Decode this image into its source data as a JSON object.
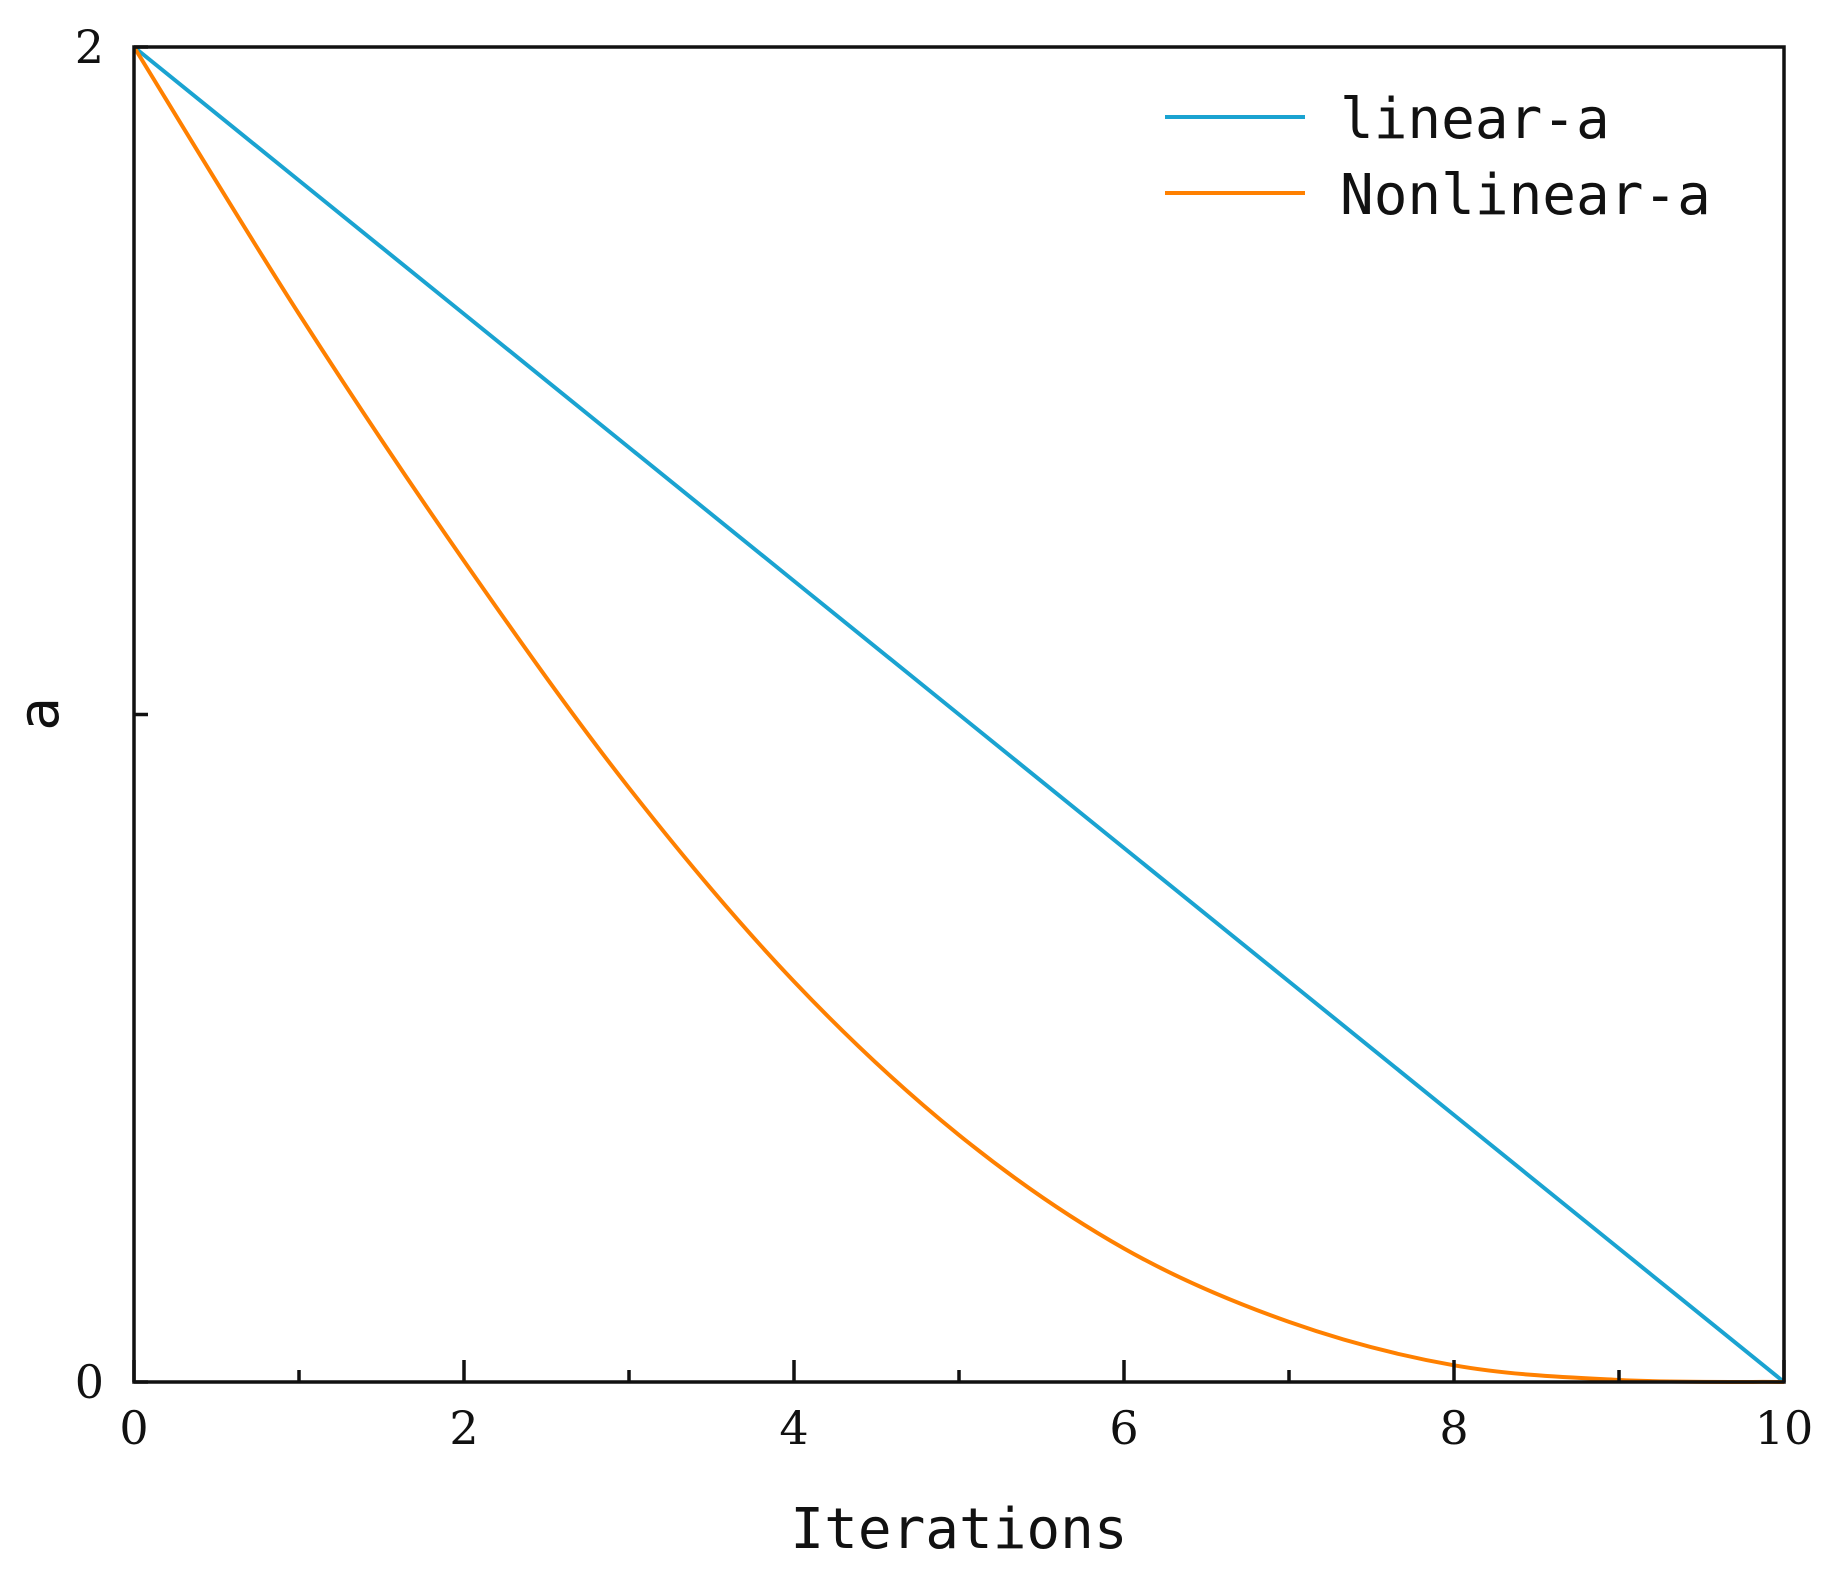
{
  "chart_data": {
    "type": "line",
    "title": "",
    "xlabel": "Iterations",
    "ylabel": "a",
    "xlim": [
      0,
      10
    ],
    "ylim": [
      0,
      2
    ],
    "x_ticks": [
      0,
      2,
      4,
      6,
      8,
      10
    ],
    "x_minor_ticks": [
      1,
      3,
      5,
      7,
      9
    ],
    "x_tick_labels": [
      "0",
      "2",
      "4",
      "6",
      "8",
      "10"
    ],
    "y_ticks": [
      0,
      1,
      2
    ],
    "y_tick_labels": [
      "0",
      "",
      "2"
    ],
    "grid": false,
    "legend_position": "top-right",
    "series": [
      {
        "name": "linear-a",
        "color": "#1aa3d1",
        "x": [
          0,
          1,
          2,
          3,
          4,
          5,
          6,
          7,
          8,
          9,
          10
        ],
        "y": [
          2.0,
          1.8,
          1.6,
          1.4,
          1.2,
          1.0,
          0.8,
          0.6,
          0.4,
          0.2,
          0.0
        ]
      },
      {
        "name": "Nonlinear-a",
        "color": "#ff8000",
        "x": [
          0,
          1,
          2,
          3,
          4,
          5,
          6,
          7,
          8,
          9,
          10
        ],
        "y": [
          2.0,
          1.6,
          1.23,
          0.89,
          0.6,
          0.37,
          0.2,
          0.09,
          0.025,
          0.003,
          0.0
        ]
      }
    ]
  }
}
